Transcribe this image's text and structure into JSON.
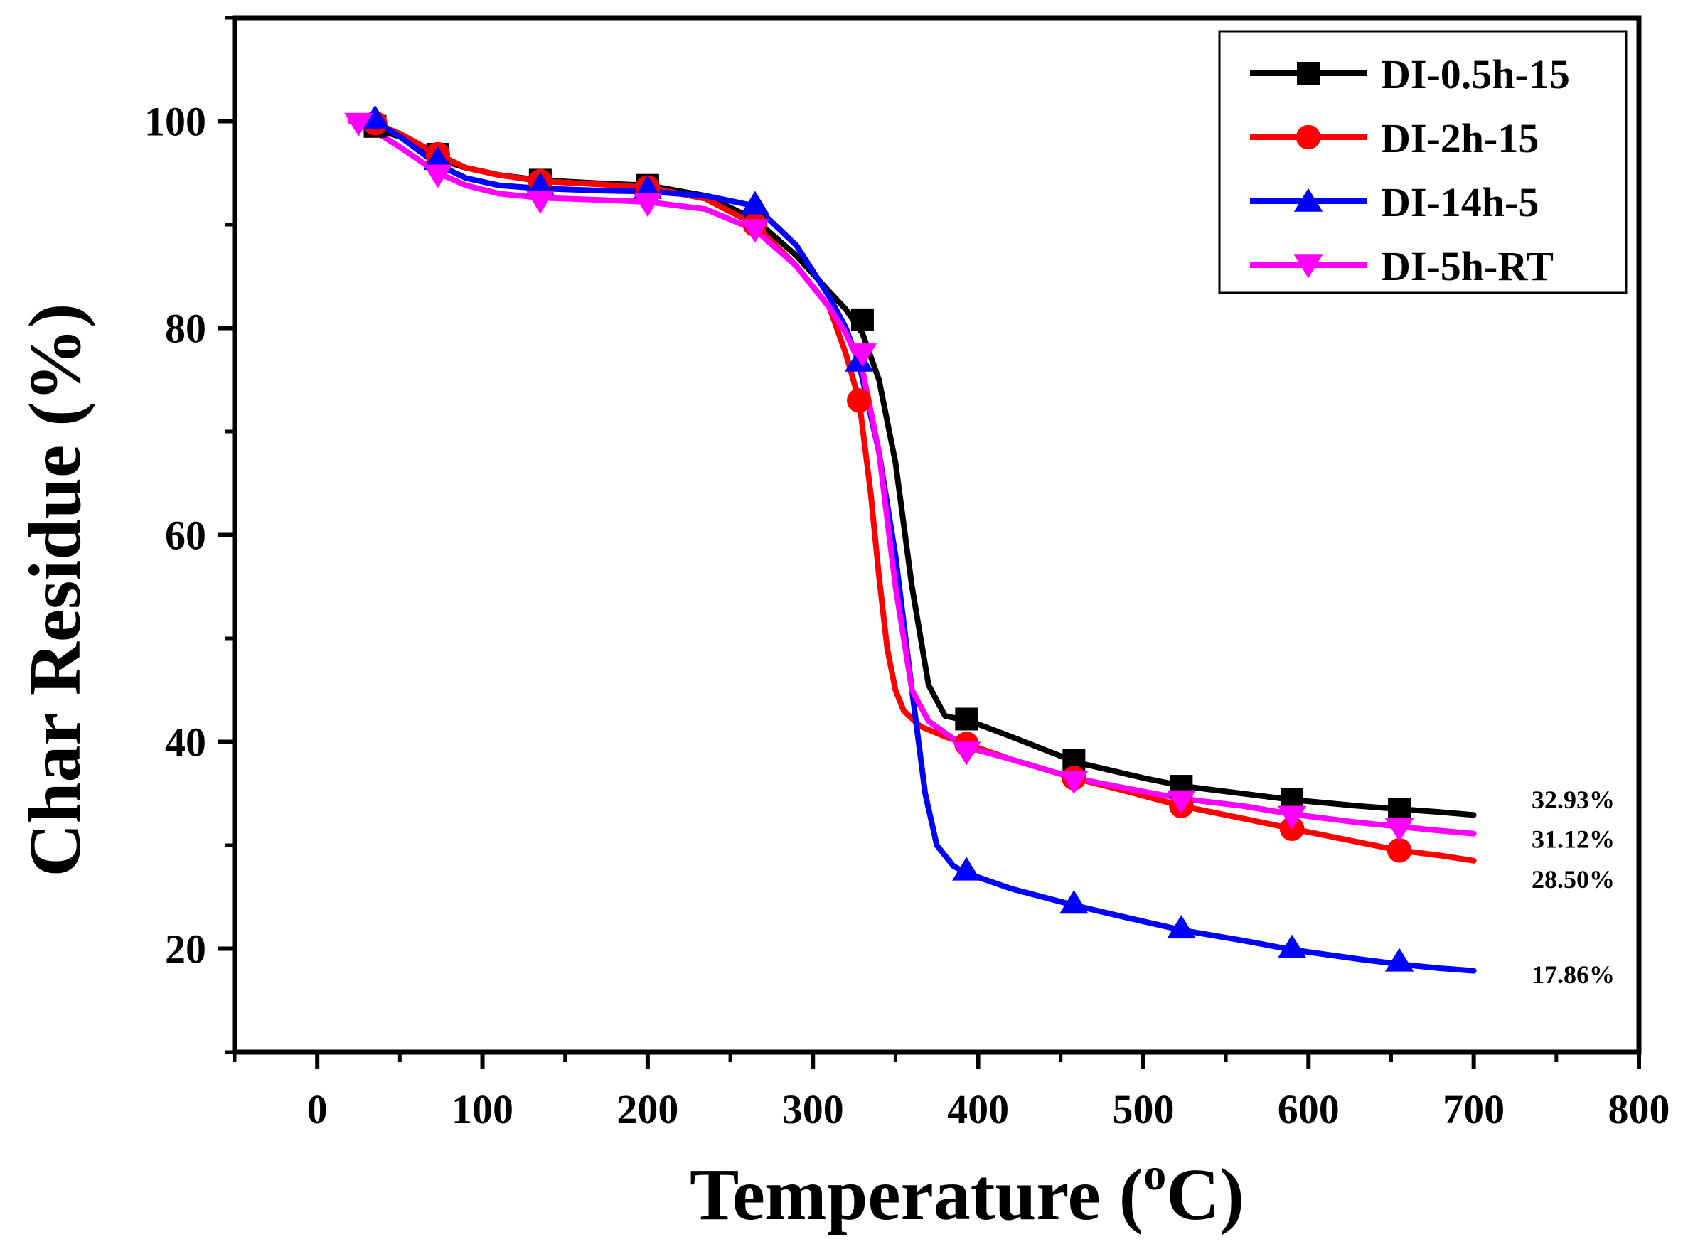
{
  "chart_data": {
    "type": "line",
    "title": "",
    "xlabel": "Temperature (",
    "xlabel_sup": "o",
    "xlabel_end": "C)",
    "ylabel": "Char Residue (%)",
    "xlim": [
      -50,
      800
    ],
    "ylim": [
      10,
      110
    ],
    "xticks": [
      0,
      100,
      200,
      300,
      400,
      500,
      600,
      700,
      800
    ],
    "xtick_labels": [
      "0",
      "100",
      "200",
      "300",
      "400",
      "500",
      "600",
      "700",
      "800"
    ],
    "yticks": [
      20,
      40,
      60,
      80,
      100
    ],
    "ytick_labels": [
      "20",
      "40",
      "60",
      "80",
      "100"
    ],
    "grid": false,
    "legend_position": "top-right",
    "series": [
      {
        "name": "DI-0.5h-15",
        "color": "#000000",
        "marker": "square",
        "x": [
          25,
          30,
          50,
          70,
          90,
          110,
          135,
          170,
          200,
          235,
          265,
          290,
          310,
          320,
          330,
          340,
          350,
          360,
          370,
          380,
          395,
          420,
          460,
          500,
          525,
          560,
          590,
          630,
          655,
          680,
          700
        ],
        "y": [
          99.5,
          99.5,
          98.5,
          96.5,
          95.5,
          94.8,
          94.3,
          94.0,
          93.8,
          92.8,
          90.5,
          87.0,
          83.5,
          81.8,
          79.5,
          75.0,
          67.0,
          55.0,
          45.5,
          42.5,
          42.0,
          40.5,
          38.0,
          36.5,
          35.7,
          35.0,
          34.4,
          33.8,
          33.5,
          33.2,
          32.93
        ],
        "marker_x": [
          35,
          73,
          135,
          200,
          265,
          330,
          393,
          458,
          523,
          590,
          655
        ],
        "marker_y": [
          99.5,
          96.8,
          94.3,
          93.8,
          90.5,
          80.8,
          42.2,
          38.2,
          35.7,
          34.4,
          33.5
        ]
      },
      {
        "name": "DI-2h-15",
        "color": "#ff0000",
        "marker": "circle",
        "x": [
          25,
          35,
          50,
          73,
          90,
          110,
          135,
          170,
          200,
          235,
          265,
          290,
          310,
          320,
          328,
          335,
          340,
          345,
          350,
          355,
          365,
          380,
          393,
          420,
          458,
          490,
          523,
          560,
          590,
          630,
          655,
          680,
          700
        ],
        "y": [
          99.8,
          99.8,
          98.8,
          96.8,
          95.5,
          94.8,
          94.2,
          93.9,
          93.6,
          92.5,
          90.0,
          86.0,
          82.0,
          77.5,
          73.0,
          64.0,
          56.0,
          49.0,
          45.0,
          43.0,
          41.5,
          40.5,
          39.8,
          38.3,
          36.5,
          35.2,
          33.8,
          32.6,
          31.6,
          30.3,
          29.5,
          29.0,
          28.5
        ],
        "marker_x": [
          35,
          73,
          135,
          200,
          265,
          328,
          393,
          458,
          523,
          590,
          655
        ],
        "marker_y": [
          99.8,
          96.8,
          94.2,
          93.6,
          90.0,
          73.0,
          39.8,
          36.5,
          33.8,
          31.6,
          29.5
        ]
      },
      {
        "name": "DI-14h-5",
        "color": "#0000ff",
        "marker": "triangle-up",
        "x": [
          25,
          35,
          50,
          73,
          90,
          110,
          135,
          170,
          200,
          235,
          265,
          290,
          310,
          320,
          328,
          340,
          350,
          360,
          368,
          375,
          385,
          393,
          420,
          458,
          490,
          523,
          560,
          590,
          630,
          655,
          680,
          700
        ],
        "y": [
          100.0,
          100.0,
          98.5,
          95.8,
          94.5,
          93.8,
          93.5,
          93.3,
          93.2,
          92.8,
          91.8,
          88.0,
          83.0,
          80.0,
          76.5,
          68.0,
          58.0,
          45.0,
          35.0,
          30.0,
          28.0,
          27.3,
          25.8,
          24.2,
          23.0,
          21.8,
          20.8,
          19.9,
          19.0,
          18.5,
          18.1,
          17.86
        ],
        "marker_x": [
          35,
          73,
          135,
          200,
          265,
          328,
          393,
          458,
          523,
          590,
          655
        ],
        "marker_y": [
          100.3,
          96.3,
          93.8,
          93.5,
          92.0,
          76.8,
          27.6,
          24.4,
          22.0,
          20.1,
          18.8
        ]
      },
      {
        "name": "DI-5h-RT",
        "color": "#ff00ff",
        "marker": "triangle-down",
        "x": [
          20,
          25,
          35,
          50,
          73,
          90,
          110,
          135,
          170,
          200,
          235,
          265,
          290,
          310,
          320,
          330,
          340,
          350,
          360,
          370,
          385,
          393,
          420,
          458,
          490,
          523,
          560,
          590,
          630,
          655,
          680,
          700
        ],
        "y": [
          100.0,
          100.0,
          99.0,
          97.5,
          95.0,
          93.8,
          93.0,
          92.6,
          92.4,
          92.2,
          91.5,
          89.5,
          86.0,
          82.0,
          79.5,
          76.0,
          68.0,
          55.0,
          45.0,
          42.0,
          40.3,
          39.5,
          38.3,
          36.5,
          35.5,
          34.5,
          33.8,
          33.0,
          32.2,
          31.8,
          31.4,
          31.12
        ],
        "marker_x": [
          25,
          73,
          135,
          200,
          265,
          330,
          393,
          458,
          523,
          590,
          655
        ],
        "marker_y": [
          99.8,
          94.8,
          92.3,
          92.0,
          89.5,
          77.5,
          39.0,
          36.2,
          34.3,
          32.8,
          31.6
        ]
      }
    ],
    "annotations": [
      {
        "text": "32.93%",
        "x": 735,
        "y": 34.4
      },
      {
        "text": "31.12%",
        "x": 735,
        "y": 30.6
      },
      {
        "text": "28.50%",
        "x": 735,
        "y": 26.7
      },
      {
        "text": "17.86%",
        "x": 735,
        "y": 17.5
      }
    ]
  }
}
